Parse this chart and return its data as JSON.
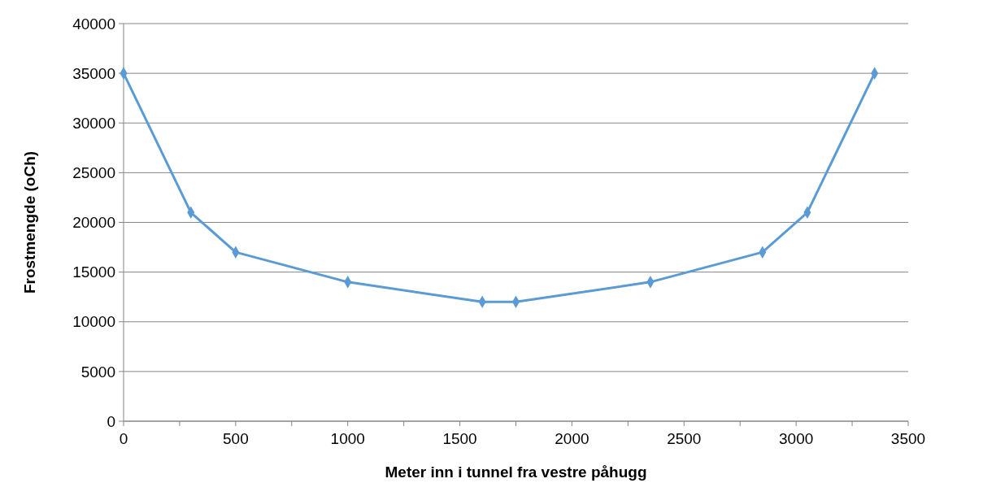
{
  "chart_data": {
    "type": "line",
    "xlabel": "Meter inn i tunnel fra vestre påhugg",
    "ylabel": "Frostmengde (oCh)",
    "x": [
      0,
      300,
      500,
      1000,
      1600,
      1750,
      2350,
      2850,
      3050,
      3350
    ],
    "series": [
      {
        "color": "#5b9bd5",
        "values": [
          35000,
          21000,
          17000,
          14000,
          12000,
          12000,
          14000,
          17000,
          21000,
          35000
        ]
      }
    ],
    "xlim": [
      0,
      3500
    ],
    "xticks": [
      0,
      {
        "value": 250,
        "label": null
      },
      500,
      {
        "value": 750,
        "label": null
      },
      1000,
      {
        "value": 1250,
        "label": null
      },
      1500,
      {
        "value": 1750,
        "label": null
      },
      2000,
      {
        "value": 2250,
        "label": null
      },
      2500,
      {
        "value": 2750,
        "label": null
      },
      3000,
      {
        "value": 3250,
        "label": null
      },
      3500
    ],
    "ylim": [
      0,
      40000
    ],
    "yticks": [
      0,
      5000,
      10000,
      15000,
      20000,
      25000,
      30000,
      35000,
      40000
    ],
    "grid": "y",
    "marker": "diamond",
    "line_style": "solid"
  }
}
